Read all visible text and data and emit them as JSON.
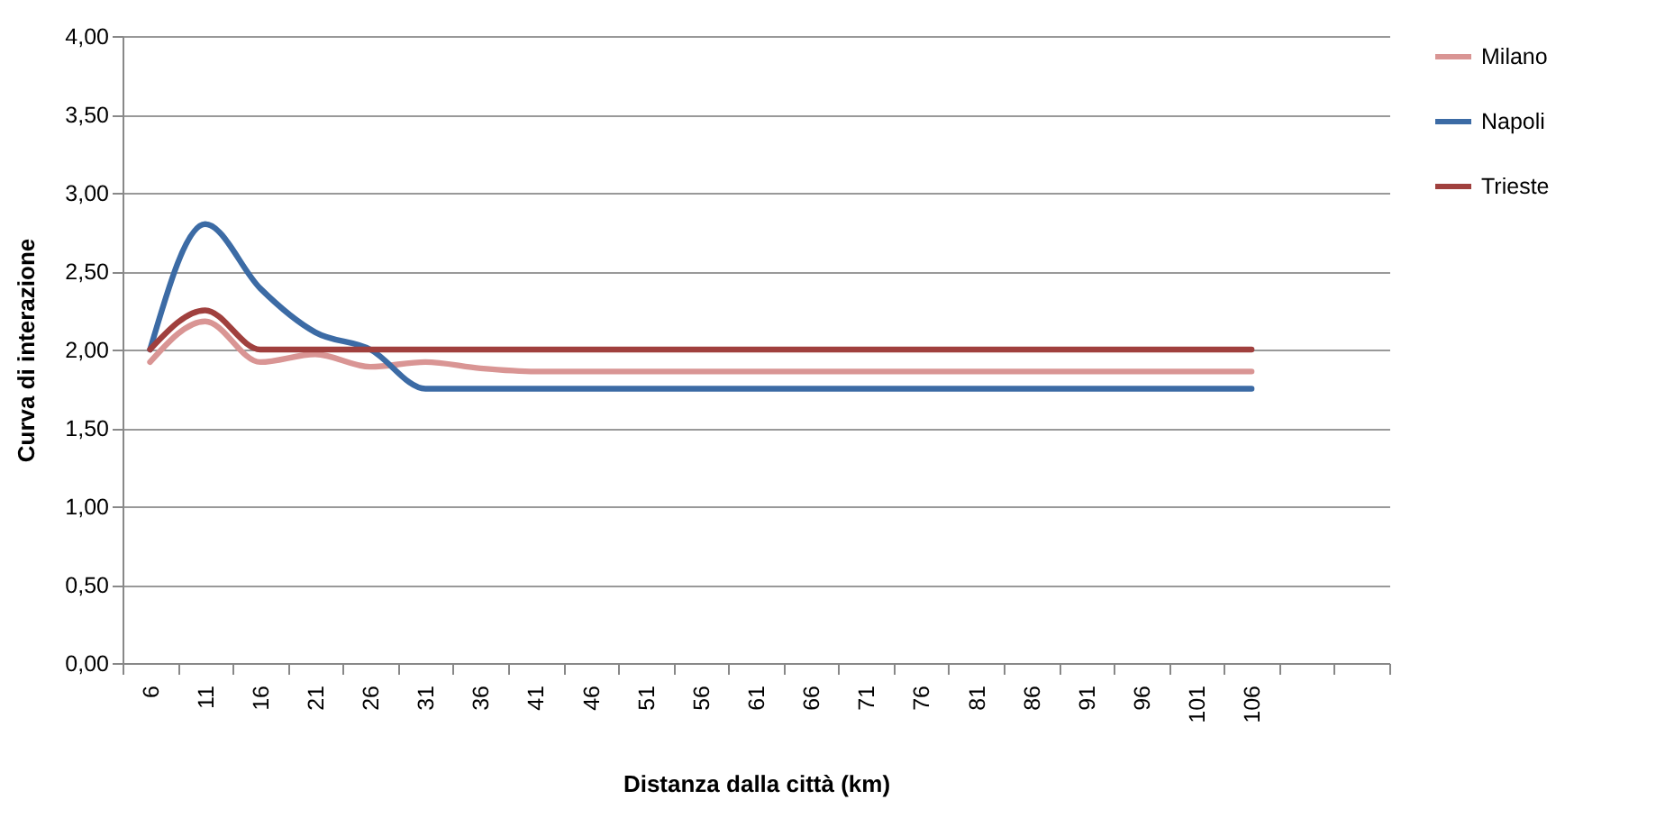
{
  "chart_data": {
    "type": "line",
    "xlabel": "Distanza dalla città (km)",
    "ylabel": "Curva di interazione",
    "categories": [
      "6",
      "11",
      "16",
      "21",
      "26",
      "31",
      "36",
      "41",
      "46",
      "51",
      "56",
      "61",
      "66",
      "71",
      "76",
      "81",
      "86",
      "91",
      "96",
      "101",
      "106",
      null,
      null
    ],
    "series": [
      {
        "name": "Milano",
        "color": "#d99594",
        "values": [
          1.92,
          2.18,
          1.92,
          1.97,
          1.89,
          1.92,
          1.88,
          1.86,
          1.86,
          1.86,
          1.86,
          1.86,
          1.86,
          1.86,
          1.86,
          1.86,
          1.86,
          1.86,
          1.86,
          1.86,
          1.86,
          null,
          null
        ]
      },
      {
        "name": "Napoli",
        "color": "#3c6ba5",
        "values": [
          2.0,
          2.8,
          2.39,
          2.11,
          2.0,
          1.75,
          1.75,
          1.75,
          1.75,
          1.75,
          1.75,
          1.75,
          1.75,
          1.75,
          1.75,
          1.75,
          1.75,
          1.75,
          1.75,
          1.75,
          1.75,
          null,
          null
        ]
      },
      {
        "name": "Trieste",
        "color": "#a0403e",
        "values": [
          2.0,
          2.25,
          2.0,
          2.0,
          2.0,
          2.0,
          2.0,
          2.0,
          2.0,
          2.0,
          2.0,
          2.0,
          2.0,
          2.0,
          2.0,
          2.0,
          2.0,
          2.0,
          2.0,
          2.0,
          2.0,
          null,
          null
        ]
      }
    ],
    "ylim": [
      0,
      4
    ],
    "yticks": [
      {
        "value": 0,
        "label": "0,00"
      },
      {
        "value": 0.5,
        "label": "0,50"
      },
      {
        "value": 1,
        "label": "1,00"
      },
      {
        "value": 1.5,
        "label": "1,50"
      },
      {
        "value": 2,
        "label": "2,00"
      },
      {
        "value": 2.5,
        "label": "2,50"
      },
      {
        "value": 3,
        "label": "3,00"
      },
      {
        "value": 3.5,
        "label": "3,50"
      },
      {
        "value": 4,
        "label": "4,00"
      }
    ],
    "grid": "y",
    "legend": "right"
  }
}
